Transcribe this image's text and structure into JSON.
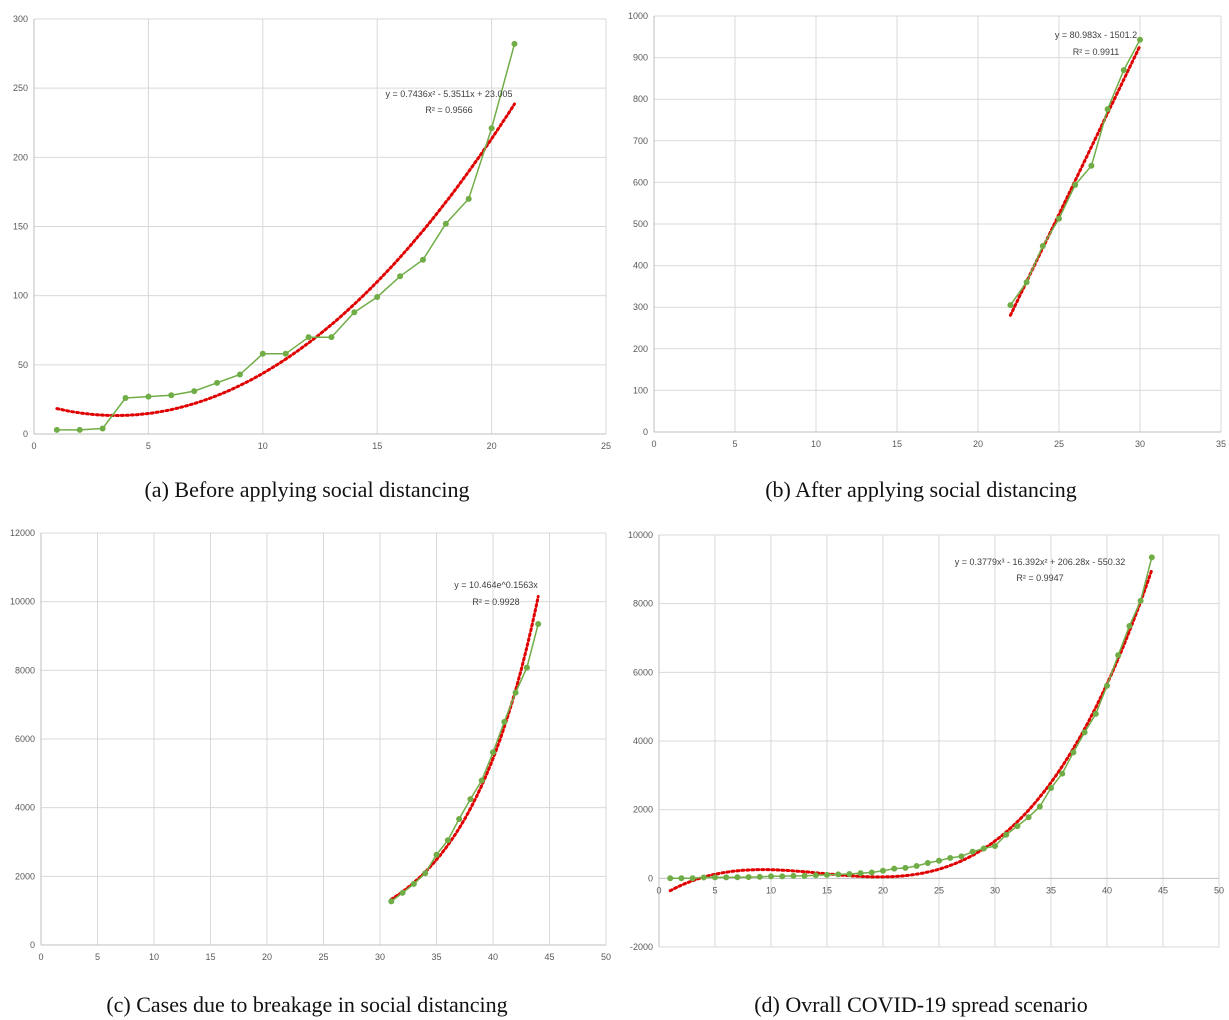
{
  "captions": {
    "a": "(a) Before applying social distancing",
    "b": "(b) After applying social distancing",
    "c": "(c) Cases due to breakage in social distancing",
    "d": "(d) Ovrall COVID-19 spread scenario"
  },
  "colors": {
    "series": "#70ad47",
    "trend": "#e00000",
    "grid": "#d9d9d9",
    "axis": "#bfbfbf",
    "tick": "#595959"
  },
  "chart_data": [
    {
      "id": "a",
      "type": "scatter",
      "xlim": [
        0,
        25
      ],
      "ylim": [
        0,
        300
      ],
      "xticks": [
        0,
        5,
        10,
        15,
        20,
        25
      ],
      "yticks": [
        0,
        50,
        100,
        150,
        200,
        250,
        300
      ],
      "grid": true,
      "series": [
        {
          "points": [
            [
              1,
              3
            ],
            [
              2,
              3
            ],
            [
              3,
              4
            ],
            [
              4,
              26
            ],
            [
              5,
              27
            ],
            [
              6,
              28
            ],
            [
              7,
              31
            ],
            [
              8,
              37
            ],
            [
              9,
              43
            ],
            [
              10,
              58
            ],
            [
              11,
              58
            ],
            [
              12,
              70
            ],
            [
              13,
              70
            ],
            [
              14,
              88
            ],
            [
              15,
              99
            ],
            [
              16,
              114
            ],
            [
              17,
              126
            ],
            [
              18,
              152
            ],
            [
              19,
              170
            ],
            [
              20,
              221
            ],
            [
              21,
              282
            ]
          ]
        }
      ],
      "trendline": {
        "kind": "poly",
        "coef": [
          23.005,
          -5.3511,
          0.7436
        ],
        "x_range": [
          1,
          21
        ]
      },
      "equation": "y = 0.7436x² - 5.3511x + 23.005",
      "r2": "R² = 0.9566"
    },
    {
      "id": "b",
      "type": "scatter",
      "xlim": [
        0,
        35
      ],
      "ylim": [
        0,
        1000
      ],
      "xticks": [
        0,
        5,
        10,
        15,
        20,
        25,
        30,
        35
      ],
      "yticks": [
        0,
        100,
        200,
        300,
        400,
        500,
        600,
        700,
        800,
        900,
        1000
      ],
      "grid": true,
      "series": [
        {
          "points": [
            [
              22,
              305
            ],
            [
              23,
              360
            ],
            [
              24,
              447
            ],
            [
              25,
              513
            ],
            [
              26,
              594
            ],
            [
              27,
              640
            ],
            [
              28,
              776
            ],
            [
              29,
              870
            ],
            [
              30,
              943
            ]
          ]
        }
      ],
      "trendline": {
        "kind": "poly",
        "coef": [
          -1501.2,
          80.983
        ],
        "x_range": [
          22,
          30
        ]
      },
      "equation": "y = 80.983x - 1501.2",
      "r2": "R² = 0.9911"
    },
    {
      "id": "c",
      "type": "scatter",
      "xlim": [
        0,
        50
      ],
      "ylim": [
        0,
        12000
      ],
      "xticks": [
        0,
        5,
        10,
        15,
        20,
        25,
        30,
        35,
        40,
        45,
        50
      ],
      "yticks": [
        0,
        2000,
        4000,
        6000,
        8000,
        10000,
        12000
      ],
      "grid": true,
      "series": [
        {
          "points": [
            [
              31,
              1270
            ],
            [
              32,
              1520
            ],
            [
              33,
              1780
            ],
            [
              34,
              2090
            ],
            [
              35,
              2630
            ],
            [
              36,
              3050
            ],
            [
              37,
              3670
            ],
            [
              38,
              4250
            ],
            [
              39,
              4790
            ],
            [
              40,
              5610
            ],
            [
              41,
              6500
            ],
            [
              42,
              7350
            ],
            [
              43,
              8080
            ],
            [
              44,
              9350
            ]
          ]
        }
      ],
      "trendline": {
        "kind": "exp",
        "a": 10.464,
        "b": 0.1563,
        "x_range": [
          31,
          44
        ]
      },
      "equation": "y = 10.464e^0.1563x",
      "r2": "R² = 0.9928"
    },
    {
      "id": "d",
      "type": "scatter",
      "xlim": [
        0,
        50
      ],
      "ylim": [
        -2000,
        10000
      ],
      "xticks": [
        0,
        5,
        10,
        15,
        20,
        25,
        30,
        35,
        40,
        45,
        50
      ],
      "yticks": [
        -2000,
        0,
        2000,
        4000,
        6000,
        8000,
        10000
      ],
      "grid": true,
      "series": [
        {
          "points": [
            [
              1,
              3
            ],
            [
              2,
              3
            ],
            [
              3,
              4
            ],
            [
              4,
              26
            ],
            [
              5,
              27
            ],
            [
              6,
              28
            ],
            [
              7,
              31
            ],
            [
              8,
              37
            ],
            [
              9,
              43
            ],
            [
              10,
              58
            ],
            [
              11,
              58
            ],
            [
              12,
              70
            ],
            [
              13,
              70
            ],
            [
              14,
              88
            ],
            [
              15,
              99
            ],
            [
              16,
              114
            ],
            [
              17,
              126
            ],
            [
              18,
              152
            ],
            [
              19,
              170
            ],
            [
              20,
              221
            ],
            [
              21,
              282
            ],
            [
              22,
              305
            ],
            [
              23,
              360
            ],
            [
              24,
              447
            ],
            [
              25,
              513
            ],
            [
              26,
              594
            ],
            [
              27,
              640
            ],
            [
              28,
              776
            ],
            [
              29,
              870
            ],
            [
              30,
              943
            ],
            [
              31,
              1270
            ],
            [
              32,
              1520
            ],
            [
              33,
              1780
            ],
            [
              34,
              2090
            ],
            [
              35,
              2630
            ],
            [
              36,
              3050
            ],
            [
              37,
              3670
            ],
            [
              38,
              4250
            ],
            [
              39,
              4790
            ],
            [
              40,
              5610
            ],
            [
              41,
              6500
            ],
            [
              42,
              7350
            ],
            [
              43,
              8080
            ],
            [
              44,
              9350
            ]
          ]
        }
      ],
      "trendline": {
        "kind": "poly",
        "coef": [
          -550.32,
          206.28,
          -16.392,
          0.3779
        ],
        "x_range": [
          1,
          44
        ]
      },
      "equation": "y = 0.3779x³ - 16.392x² + 206.28x - 550.32",
      "r2": "R² = 0.9947"
    }
  ]
}
